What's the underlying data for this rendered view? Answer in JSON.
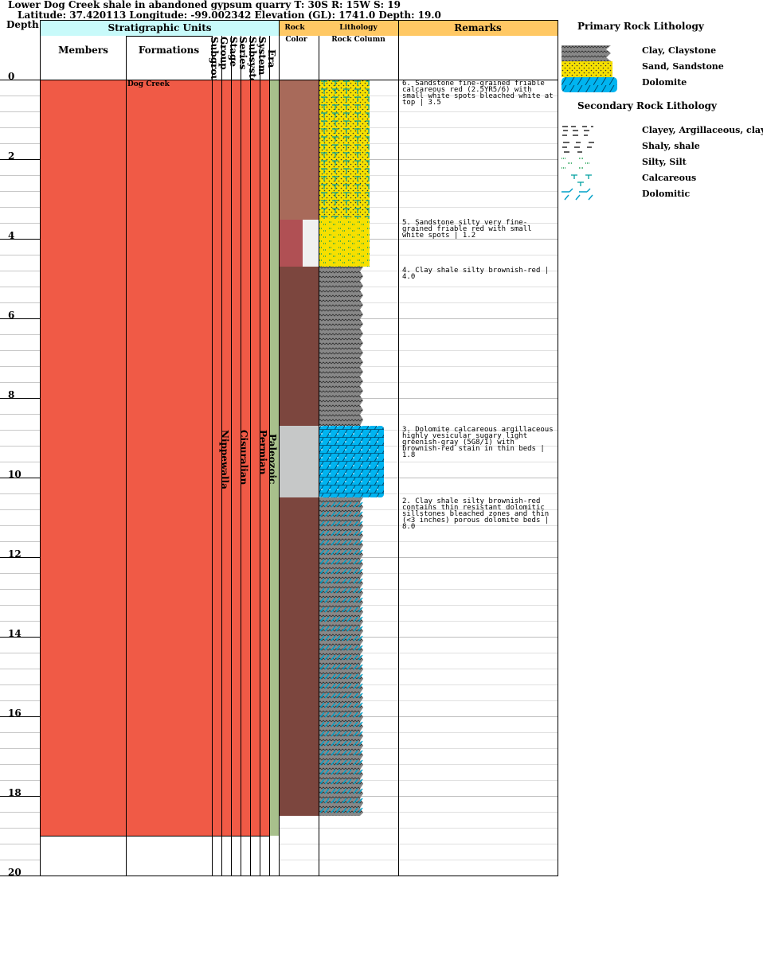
{
  "header": {
    "title_line1": "Lower Dog Creek shale in abandoned gypsum quarry T: 30S R: 15W S: 19",
    "title_line2": "Latitude: 37.420113 Longitude: -99.002342 Elevation (GL): 1741.0 Depth: 19.0"
  },
  "columns": {
    "depth": "Depth",
    "strat_units": "Stratigraphic Units",
    "members": "Members",
    "formations": "Formations",
    "rock": "Rock",
    "color": "Color",
    "lithology": "Lithology",
    "rock_column": "Rock Column",
    "remarks": "Remarks",
    "subgroup": "Subgroup",
    "group": "Group",
    "stage": "Stage",
    "series": "Series",
    "subsystem": "Subsystem",
    "system": "System",
    "era": "Era"
  },
  "depth_labels": [
    "0",
    "2",
    "4",
    "6",
    "8",
    "10",
    "12",
    "14",
    "16",
    "18",
    "20"
  ],
  "units": {
    "formation": "Dog Creek",
    "group": "Nippewalla",
    "series": "Cisuralian",
    "system": "Permian",
    "era": "Paleozoic"
  },
  "colors": {
    "strat_fill": "#f05a46",
    "era_fill": "#a8c08c",
    "strat_header": "#c8fafa",
    "lith_header": "#ffc864",
    "sandstone_color": "#a86a5a",
    "silty_color": "#b05054",
    "clay_color": "#7c463e",
    "dolomite_color": "#c6c8c8",
    "sand_pattern": "#f6e000",
    "dolomite_pattern": "#00b4f0",
    "clay_pattern": "#808080"
  },
  "remarks": [
    "6. Sandstone fine-grained friable calcareous red (2.5YR5/6) with small white spots bleached white at top | 3.5",
    "5. Sandstone silty very fine-grained friable red with small white spots | 1.2",
    "4. Clay shale silty brownish-red | 4.0",
    "3. Dolomite calcareous argillaceous highly vesicular sugary light greenish-gray (5G8/1) with brownish-red stain in thin beds | 1.8",
    "2. Clay shale silty brownish-red contains thin resistant dolomitic sillstones bleached zones and thin (<3 inches) porous dolomite beds | 8.0"
  ],
  "legend": {
    "primary_title": "Primary Rock Lithology",
    "primary": [
      "Clay, Claystone",
      "Sand, Sandstone",
      "Dolomite"
    ],
    "secondary_title": "Secondary Rock Lithology",
    "secondary": [
      "Clayey, Argillaceous, clay",
      "Shaly, shale",
      "Silty, Silt",
      "Calcareous",
      "Dolomitic"
    ]
  }
}
